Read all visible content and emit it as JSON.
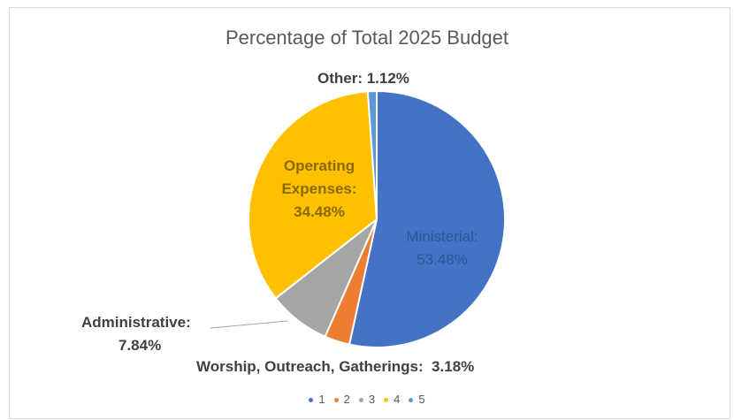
{
  "chart_data": {
    "type": "pie",
    "title": "Percentage of Total 2025 Budget",
    "slices": [
      {
        "name": "Ministerial",
        "value": 53.48,
        "label": "Ministerial:",
        "value_label": "53.48%",
        "color": "#4472c4"
      },
      {
        "name": "Worship, Outreach, Gatherings",
        "value": 3.18,
        "label": "Worship, Outreach, Gatherings:  3.18%",
        "color": "#ed7d31"
      },
      {
        "name": "Administrative",
        "value": 7.84,
        "label": "Administrative:",
        "value_label": "7.84%",
        "color": "#a5a5a5"
      },
      {
        "name": "Operating Expenses",
        "value": 34.48,
        "label_lines": [
          "Operating",
          "Expenses:",
          "34.48%"
        ],
        "color": "#ffc000"
      },
      {
        "name": "Other",
        "value": 1.12,
        "label": "Other: 1.12%",
        "color": "#5b9bd5"
      }
    ],
    "legend": {
      "placement": "bottom",
      "entries": [
        {
          "label": "1",
          "color": "#4472c4"
        },
        {
          "label": "2",
          "color": "#ed7d31"
        },
        {
          "label": "3",
          "color": "#a5a5a5"
        },
        {
          "label": "4",
          "color": "#ffc000"
        },
        {
          "label": "5",
          "color": "#5b9bd5"
        }
      ]
    }
  }
}
